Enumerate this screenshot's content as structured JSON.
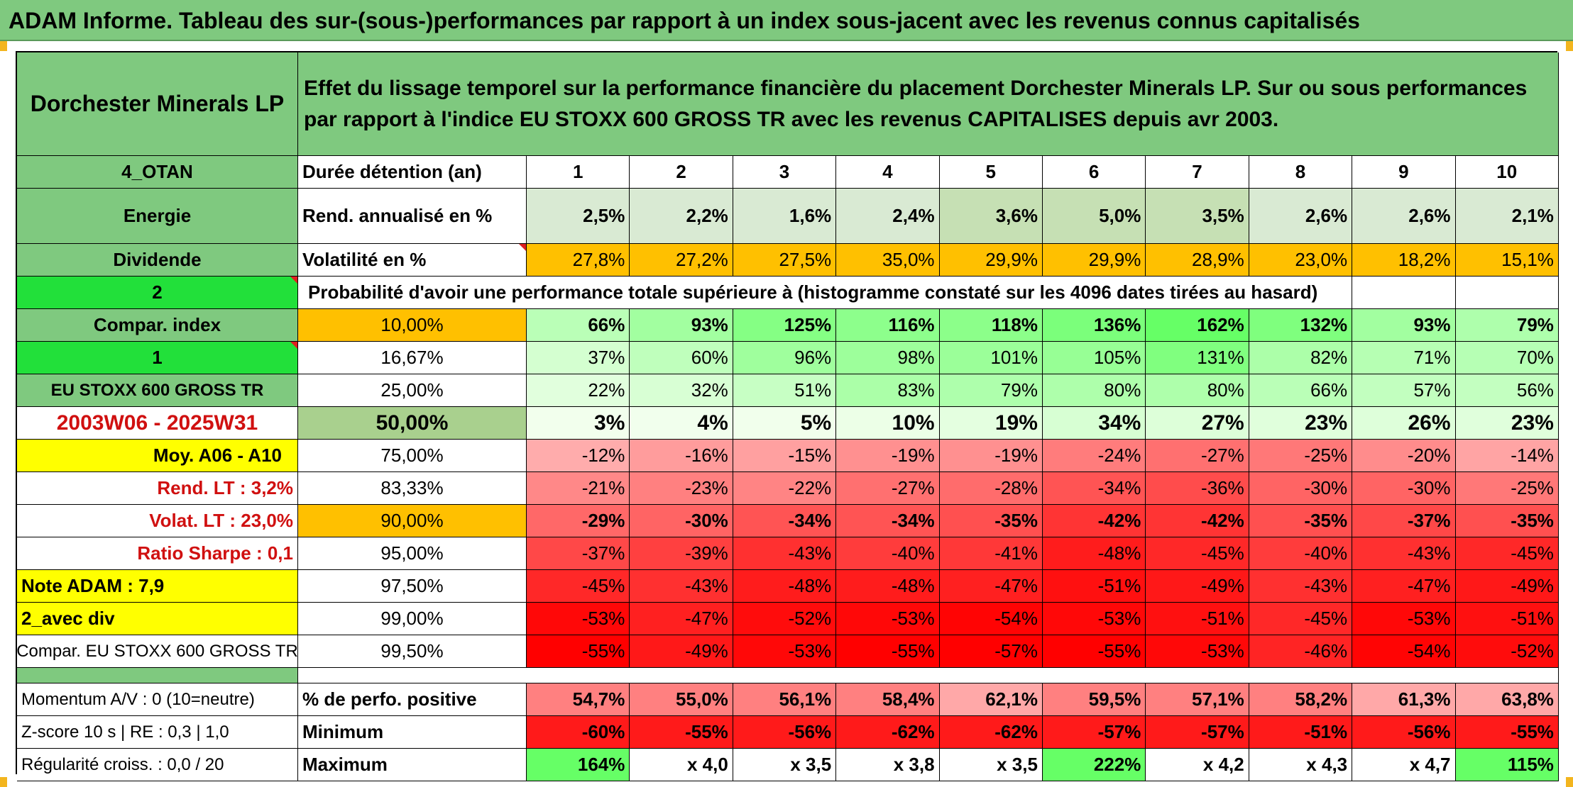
{
  "title": "ADAM Informe. Tableau des sur-(sous-)performances par rapport à un index sous-jacent avec les revenus connus capitalisés",
  "header": {
    "fund_name": "Dorchester Minerals LP",
    "description": "Effet du lissage temporel sur la performance financière du placement Dorchester Minerals LP. Sur ou sous performances par rapport à l'indice EU STOXX 600 GROSS TR avec les revenus CAPITALISES depuis avr 2003."
  },
  "left": {
    "code": "4_OTAN",
    "sector": "Energie",
    "type": "Dividende",
    "num1": "2",
    "compar_index": "Compar. index",
    "num2": "1",
    "index_name": "EU STOXX 600 GROSS TR",
    "period": "2003W06 - 2025W31",
    "avg": "Moy. A06 - A10",
    "rend_lt": "Rend. LT :   3,2%",
    "volat_lt": "Volat. LT :   23,0%",
    "sharpe": "Ratio Sharpe :    0,1",
    "note": "Note ADAM : 7,9",
    "div": "2_avec div",
    "compar_name": "Compar. EU STOXX 600 GROSS TR",
    "momentum": "Momentum A/V : 0 (10=neutre)",
    "zscore": "Z-score 10 s | RE : 0,3 | 1,0",
    "regularity": "Régularité croiss. : 0,0 / 20"
  },
  "labels": {
    "duration": "Durée détention (an)",
    "rend": "Rend. annualisé en %",
    "volat": "Volatilité en %",
    "proba": "Probabilité d'avoir une performance totale supérieure à (histogramme constaté sur les 4096 dates tirées au hasard)",
    "positive": "% de perfo. positive",
    "minimum": "Minimum",
    "maximum": "Maximum"
  },
  "years": [
    "1",
    "2",
    "3",
    "4",
    "5",
    "6",
    "7",
    "8",
    "9",
    "10"
  ],
  "rend": [
    "2,5%",
    "2,2%",
    "1,6%",
    "2,4%",
    "3,6%",
    "5,0%",
    "3,5%",
    "2,6%",
    "2,6%",
    "2,1%"
  ],
  "volat": [
    "27,8%",
    "27,2%",
    "27,5%",
    "35,0%",
    "29,9%",
    "29,9%",
    "28,9%",
    "23,0%",
    "18,2%",
    "15,1%"
  ],
  "quantiles": [
    {
      "label": "10,00%",
      "values": [
        "66%",
        "93%",
        "125%",
        "116%",
        "118%",
        "136%",
        "162%",
        "132%",
        "93%",
        "79%"
      ]
    },
    {
      "label": "16,67%",
      "values": [
        "37%",
        "60%",
        "96%",
        "98%",
        "101%",
        "105%",
        "131%",
        "82%",
        "71%",
        "70%"
      ]
    },
    {
      "label": "25,00%",
      "values": [
        "22%",
        "32%",
        "51%",
        "83%",
        "79%",
        "80%",
        "80%",
        "66%",
        "57%",
        "56%"
      ]
    },
    {
      "label": "50,00%",
      "values": [
        "3%",
        "4%",
        "5%",
        "10%",
        "19%",
        "34%",
        "27%",
        "23%",
        "26%",
        "23%"
      ]
    },
    {
      "label": "75,00%",
      "values": [
        "-12%",
        "-16%",
        "-15%",
        "-19%",
        "-19%",
        "-24%",
        "-27%",
        "-25%",
        "-20%",
        "-14%"
      ]
    },
    {
      "label": "83,33%",
      "values": [
        "-21%",
        "-23%",
        "-22%",
        "-27%",
        "-28%",
        "-34%",
        "-36%",
        "-30%",
        "-30%",
        "-25%"
      ]
    },
    {
      "label": "90,00%",
      "values": [
        "-29%",
        "-30%",
        "-34%",
        "-34%",
        "-35%",
        "-42%",
        "-42%",
        "-35%",
        "-37%",
        "-35%"
      ]
    },
    {
      "label": "95,00%",
      "values": [
        "-37%",
        "-39%",
        "-43%",
        "-40%",
        "-41%",
        "-48%",
        "-45%",
        "-40%",
        "-43%",
        "-45%"
      ]
    },
    {
      "label": "97,50%",
      "values": [
        "-45%",
        "-43%",
        "-48%",
        "-48%",
        "-47%",
        "-51%",
        "-49%",
        "-43%",
        "-47%",
        "-49%"
      ]
    },
    {
      "label": "99,00%",
      "values": [
        "-53%",
        "-47%",
        "-52%",
        "-53%",
        "-54%",
        "-53%",
        "-51%",
        "-45%",
        "-53%",
        "-51%"
      ]
    },
    {
      "label": "99,50%",
      "values": [
        "-55%",
        "-49%",
        "-53%",
        "-55%",
        "-57%",
        "-55%",
        "-53%",
        "-46%",
        "-54%",
        "-52%"
      ]
    }
  ],
  "positive": [
    "54,7%",
    "55,0%",
    "56,1%",
    "58,4%",
    "62,1%",
    "59,5%",
    "57,1%",
    "58,2%",
    "61,3%",
    "63,8%"
  ],
  "minimum": [
    "-60%",
    "-55%",
    "-56%",
    "-62%",
    "-62%",
    "-57%",
    "-57%",
    "-51%",
    "-56%",
    "-55%"
  ],
  "maximum": [
    "164%",
    "x 4,0",
    "x 3,5",
    "x 3,8",
    "x 3,5",
    "222%",
    "x 4,2",
    "x 4,3",
    "x 4,7",
    "115%"
  ],
  "colors": {
    "header_green": "#7fc97f",
    "accent_lime": "#22e03a",
    "highlight_yellow": "#ffff00",
    "highlight_orange": "#ffc000",
    "negative_red": "#ff0000",
    "positive_green": "#66ff66"
  }
}
